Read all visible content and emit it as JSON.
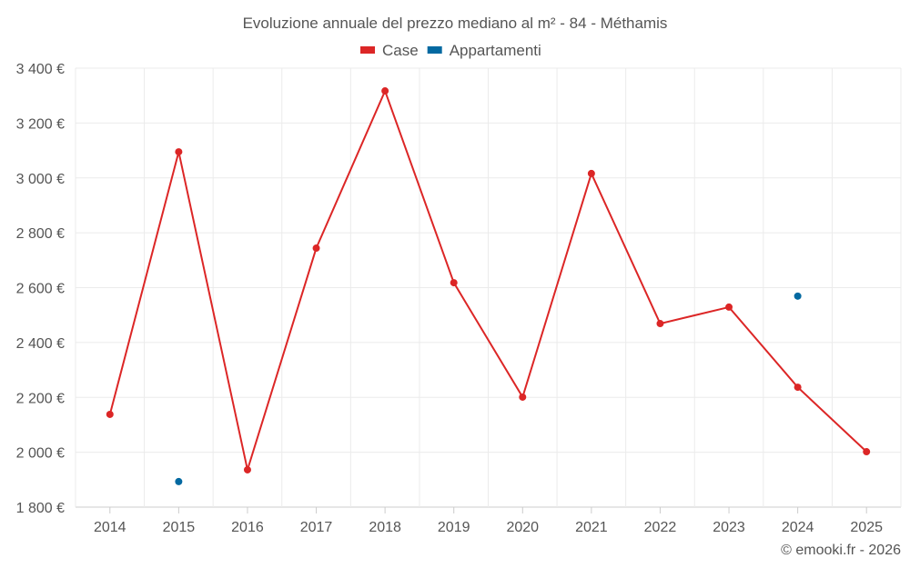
{
  "chart_data": {
    "type": "line",
    "title": "Evoluzione annuale del prezzo mediano al m² - 84 - Méthamis",
    "categories": [
      "2014",
      "2015",
      "2016",
      "2017",
      "2018",
      "2019",
      "2020",
      "2021",
      "2022",
      "2023",
      "2024",
      "2025"
    ],
    "series": [
      {
        "name": "Case",
        "color": "#dc2626",
        "values": [
          2138,
          3095,
          1936,
          2744,
          3317,
          2618,
          2201,
          3016,
          2469,
          2529,
          2237,
          2002
        ]
      },
      {
        "name": "Appartamenti",
        "color": "#0369a1",
        "values": [
          null,
          1893,
          null,
          null,
          null,
          null,
          null,
          null,
          null,
          null,
          2569,
          null
        ]
      }
    ],
    "yticks": [
      "1 800 €",
      "2 000 €",
      "2 200 €",
      "2 400 €",
      "2 600 €",
      "2 800 €",
      "3 000 €",
      "3 200 €",
      "3 400 €"
    ],
    "ylim": [
      1800,
      3400
    ],
    "ytick_step": 200,
    "grid": true,
    "legend": "top-center",
    "xlabel": "",
    "ylabel": ""
  },
  "credit": "© emooki.fr - 2026"
}
